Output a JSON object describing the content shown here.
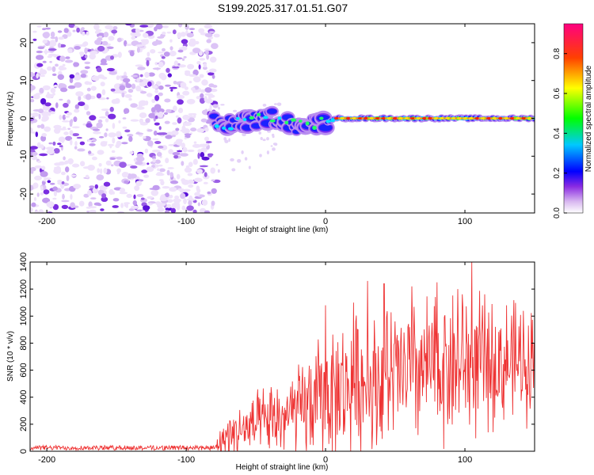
{
  "title": "S199.2025.317.01.51.G07",
  "chart_data": [
    {
      "type": "heatmap",
      "title": "S199.2025.317.01.51.G07",
      "xlabel": "Height of straight line (km)",
      "ylabel": "Frequency (Hz)",
      "xlim": [
        -212,
        150
      ],
      "ylim": [
        -25,
        25
      ],
      "xticks": [
        -200,
        -100,
        0,
        100
      ],
      "yticks": [
        -20,
        -10,
        0,
        10,
        20
      ],
      "xtick_labels": [
        "-200",
        "-100",
        "0",
        "100"
      ],
      "ytick_labels": [
        "-20",
        "-10",
        "0",
        "10",
        "20"
      ],
      "noise_region_x": [
        -212,
        -82
      ],
      "signal_onset_x": -80,
      "signal_track": [
        {
          "x": -78,
          "y": -1.5
        },
        {
          "x": -70,
          "y": -1.5
        },
        {
          "x": -60,
          "y": -1.0
        },
        {
          "x": -50,
          "y": -0.5
        },
        {
          "x": -40,
          "y": 0.5
        },
        {
          "x": -30,
          "y": -0.5
        },
        {
          "x": -20,
          "y": -2.0
        },
        {
          "x": -10,
          "y": -1.5
        },
        {
          "x": 0,
          "y": -1.0
        },
        {
          "x": 10,
          "y": 0.0
        },
        {
          "x": 30,
          "y": 0.0
        },
        {
          "x": 60,
          "y": 0.0
        },
        {
          "x": 90,
          "y": 0.0
        },
        {
          "x": 120,
          "y": 0.0
        },
        {
          "x": 150,
          "y": 0.0
        }
      ],
      "colorbar": {
        "label": "Normalized spectral amplitude",
        "range": [
          0,
          0.95
        ],
        "ticks": [
          0.0,
          0.2,
          0.4,
          0.6,
          0.8
        ],
        "tick_labels": [
          "0.0",
          "0.2",
          "0.4",
          "0.6",
          "0.8"
        ],
        "colormap": [
          "#ffffff",
          "#8a2be2",
          "#0000ff",
          "#00ffff",
          "#00ff00",
          "#ffff00",
          "#ff0000",
          "#ff00aa"
        ]
      }
    },
    {
      "type": "line",
      "xlabel": "Height of straight line (km)",
      "ylabel": "SNR (10 * v/v)",
      "xlim": [
        -212,
        150
      ],
      "ylim": [
        0,
        1400
      ],
      "xticks": [
        -200,
        -100,
        0,
        100
      ],
      "yticks": [
        0,
        200,
        400,
        600,
        800,
        1000,
        1200,
        1400
      ],
      "xtick_labels": [
        "-200",
        "-100",
        "0",
        "100"
      ],
      "ytick_labels": [
        "0",
        "200",
        "400",
        "600",
        "800",
        "1000",
        "1200",
        "1400"
      ],
      "series": [
        {
          "name": "SNR",
          "color": "#ee3333",
          "envelope": [
            {
              "x": -212,
              "base": 20,
              "amp": 20
            },
            {
              "x": -80,
              "base": 20,
              "amp": 25
            },
            {
              "x": -70,
              "base": 120,
              "amp": 220
            },
            {
              "x": -60,
              "base": 150,
              "amp": 250
            },
            {
              "x": -40,
              "base": 220,
              "amp": 320
            },
            {
              "x": -20,
              "base": 280,
              "amp": 420
            },
            {
              "x": 0,
              "base": 420,
              "amp": 560
            },
            {
              "x": 20,
              "base": 480,
              "amp": 620
            },
            {
              "x": 40,
              "base": 520,
              "amp": 640
            },
            {
              "x": 60,
              "base": 580,
              "amp": 660
            },
            {
              "x": 80,
              "base": 620,
              "amp": 660
            },
            {
              "x": 100,
              "base": 660,
              "amp": 700
            },
            {
              "x": 120,
              "base": 640,
              "amp": 560
            },
            {
              "x": 150,
              "base": 680,
              "amp": 520
            }
          ],
          "peaks": [
            {
              "x": 0,
              "y": 1080
            },
            {
              "x": 20,
              "y": 1100
            },
            {
              "x": 30,
              "y": 1260
            },
            {
              "x": 42,
              "y": 1240
            },
            {
              "x": 62,
              "y": 1220
            },
            {
              "x": 80,
              "y": 1250
            },
            {
              "x": 95,
              "y": 1200
            },
            {
              "x": 105,
              "y": 1400
            },
            {
              "x": 130,
              "y": 1080
            }
          ]
        }
      ]
    }
  ]
}
